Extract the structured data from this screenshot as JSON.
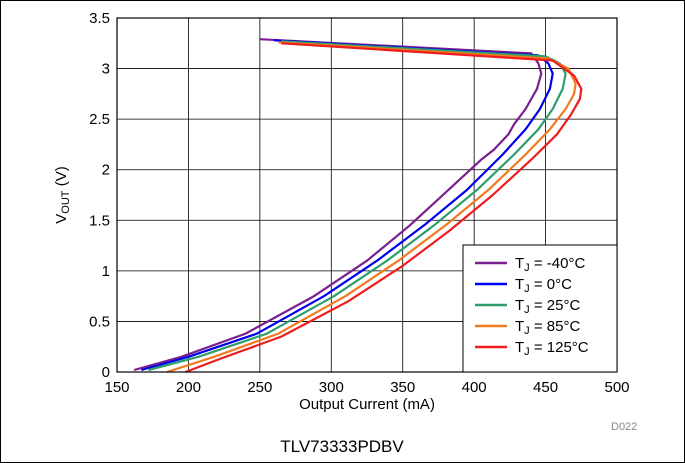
{
  "caption": "TLV73333PDBV",
  "figure_id": "D022",
  "chart_data": {
    "type": "line",
    "xlabel": "Output Current (mA)",
    "ylabel_main": "V",
    "ylabel_sub": "OUT",
    "ylabel_unit": " (V)",
    "xlim": [
      150,
      500
    ],
    "ylim": [
      0,
      3.5
    ],
    "xticks": [
      "150",
      "200",
      "250",
      "300",
      "350",
      "400",
      "450",
      "500"
    ],
    "yticks": [
      "0",
      "0.5",
      "1",
      "1.5",
      "2",
      "2.5",
      "3",
      "3.5"
    ],
    "grid": true,
    "legend_position": "bottom-right",
    "series": [
      {
        "name": "T_J = -40°C",
        "label_main": "T",
        "label_sub": "J",
        "label_rest": " = -40°C",
        "color": "#7b1f8e",
        "points": [
          [
            250,
            3.29
          ],
          [
            440,
            3.15
          ],
          [
            445,
            3.05
          ],
          [
            447,
            2.95
          ],
          [
            444,
            2.8
          ],
          [
            436,
            2.6
          ],
          [
            428,
            2.45
          ],
          [
            424,
            2.35
          ],
          [
            414,
            2.2
          ],
          [
            405,
            2.1
          ],
          [
            382,
            1.8
          ],
          [
            355,
            1.45
          ],
          [
            325,
            1.1
          ],
          [
            288,
            0.75
          ],
          [
            240,
            0.38
          ],
          [
            195,
            0.15
          ],
          [
            162,
            0.02
          ]
        ]
      },
      {
        "name": "T_J = 0°C",
        "label_main": "T",
        "label_sub": "J",
        "label_rest": " = 0°C",
        "color": "#0000ee",
        "points": [
          [
            260,
            3.28
          ],
          [
            445,
            3.13
          ],
          [
            452,
            3.05
          ],
          [
            455,
            2.95
          ],
          [
            453,
            2.8
          ],
          [
            446,
            2.6
          ],
          [
            436,
            2.4
          ],
          [
            420,
            2.15
          ],
          [
            395,
            1.8
          ],
          [
            365,
            1.45
          ],
          [
            332,
            1.1
          ],
          [
            295,
            0.75
          ],
          [
            248,
            0.38
          ],
          [
            200,
            0.15
          ],
          [
            167,
            0.02
          ]
        ]
      },
      {
        "name": "T_J = 25°C",
        "label_main": "T",
        "label_sub": "J",
        "label_rest": " = 25°C",
        "color": "#2e9e6e",
        "points": [
          [
            265,
            3.27
          ],
          [
            450,
            3.12
          ],
          [
            460,
            3.05
          ],
          [
            464,
            2.95
          ],
          [
            462,
            2.8
          ],
          [
            455,
            2.6
          ],
          [
            445,
            2.4
          ],
          [
            428,
            2.15
          ],
          [
            402,
            1.8
          ],
          [
            372,
            1.45
          ],
          [
            339,
            1.1
          ],
          [
            302,
            0.75
          ],
          [
            255,
            0.38
          ],
          [
            207,
            0.15
          ],
          [
            172,
            0.02
          ]
        ]
      },
      {
        "name": "T_J = 85°C",
        "label_main": "T",
        "label_sub": "J",
        "label_rest": " = 85°C",
        "color": "#f07a20",
        "points": [
          [
            263,
            3.26
          ],
          [
            452,
            3.1
          ],
          [
            466,
            3.0
          ],
          [
            471,
            2.85
          ],
          [
            470,
            2.75
          ],
          [
            464,
            2.6
          ],
          [
            453,
            2.4
          ],
          [
            436,
            2.15
          ],
          [
            410,
            1.8
          ],
          [
            380,
            1.45
          ],
          [
            347,
            1.1
          ],
          [
            310,
            0.75
          ],
          [
            263,
            0.38
          ],
          [
            218,
            0.15
          ],
          [
            185,
            0.0
          ]
        ]
      },
      {
        "name": "T_J = 125°C",
        "label_main": "T",
        "label_sub": "J",
        "label_rest": " = 125°C",
        "color": "#ee1c1c",
        "points": [
          [
            265,
            3.25
          ],
          [
            455,
            3.08
          ],
          [
            470,
            2.93
          ],
          [
            475,
            2.8
          ],
          [
            474,
            2.7
          ],
          [
            468,
            2.55
          ],
          [
            458,
            2.35
          ],
          [
            440,
            2.1
          ],
          [
            413,
            1.75
          ],
          [
            383,
            1.4
          ],
          [
            350,
            1.05
          ],
          [
            312,
            0.7
          ],
          [
            265,
            0.35
          ],
          [
            222,
            0.13
          ],
          [
            198,
            0.0
          ]
        ]
      }
    ]
  }
}
